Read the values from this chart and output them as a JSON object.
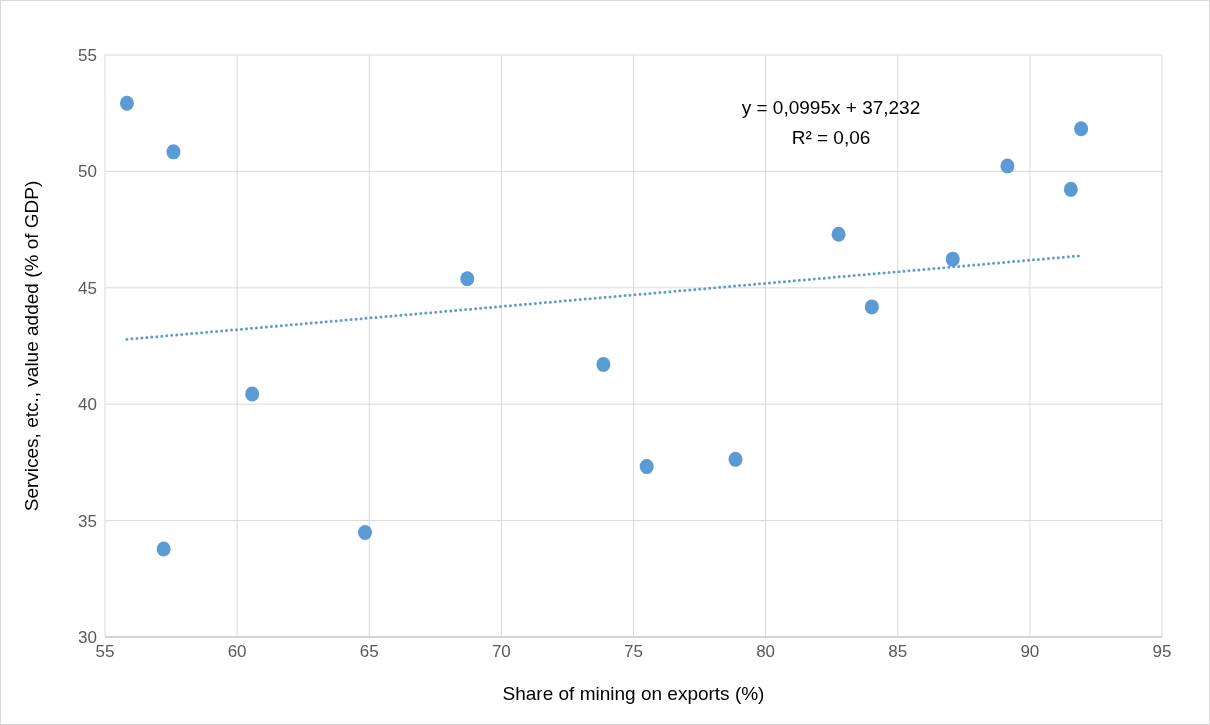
{
  "chart_data": {
    "type": "scatter",
    "xlabel": "Share of mining on exports (%)",
    "ylabel": "Services, etc., value added (% of GDP)",
    "xlim": [
      55,
      95
    ],
    "xticks": [
      55,
      60,
      65,
      70,
      75,
      80,
      85,
      90,
      95
    ],
    "ylim": [
      30,
      55
    ],
    "yticks": [
      30,
      35,
      40,
      45,
      50,
      55
    ],
    "grid": true,
    "marker": "circle",
    "annotations": [
      "y = 0,0995x + 37,232",
      "R² = 0,06"
    ],
    "series": [
      {
        "color": "#5b9bd5",
        "x": [
          55.83,
          57.59,
          57.22,
          60.57,
          64.84,
          68.71,
          73.86,
          75.5,
          78.86,
          82.76,
          84.02,
          87.08,
          89.15,
          91.55,
          91.94
        ],
        "values": [
          52.93,
          50.84,
          33.78,
          40.44,
          34.49,
          45.39,
          41.71,
          37.32,
          37.63,
          47.3,
          44.18,
          46.23,
          50.23,
          49.23,
          51.83
        ]
      },
      {
        "type": "line",
        "color": "#5b9bd5",
        "line_style": "dotted",
        "marker": "none",
        "x": [
          55.83,
          91.94
        ],
        "values": [
          42.79,
          46.38
        ]
      }
    ]
  }
}
